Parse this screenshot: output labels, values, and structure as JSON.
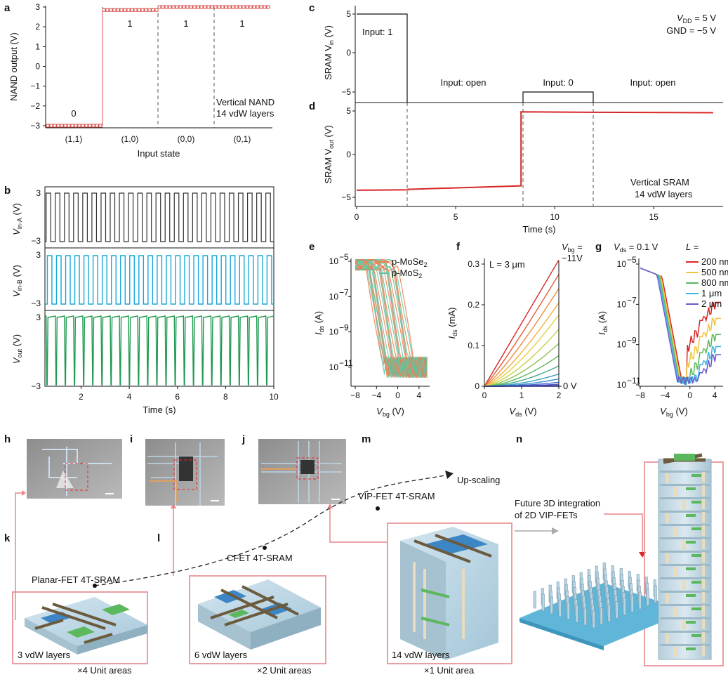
{
  "panels": {
    "a": "a",
    "b": "b",
    "c": "c",
    "d": "d",
    "e": "e",
    "f": "f",
    "g": "g",
    "h": "h",
    "i": "i",
    "j": "j",
    "k": "k",
    "l": "l",
    "m": "m",
    "n": "n"
  },
  "a": {
    "ylabel": "NAND output (V)",
    "xlabel": "Input state",
    "yticks": [
      "3",
      "2",
      "1",
      "0",
      "−1",
      "−2",
      "−3"
    ],
    "states": [
      "(1,1)",
      "(1,0)",
      "(0,0)",
      "(0,1)"
    ],
    "logic": [
      "0",
      "1",
      "1",
      "1"
    ],
    "note1": "Vertical NAND",
    "note2": "14 vdW layers",
    "chart_data": {
      "type": "scatter",
      "x": [
        "(1,1)",
        "(1,0)",
        "(0,0)",
        "(0,1)"
      ],
      "y": [
        -3.0,
        2.85,
        3.0,
        3.0
      ],
      "ylim": [
        -3.1,
        3.1
      ],
      "color": "#d9534f"
    }
  },
  "b": {
    "ylabel_a": "V",
    "ylabel_a_sub": "in-A",
    "ylabel_b": "V",
    "ylabel_b_sub": "in-B",
    "ylabel_o": "V",
    "ylabel_o_sub": "out",
    "unit": " (V)",
    "tick_hi": "3",
    "tick_lo": "−3",
    "xlabel": "Time (s)",
    "xticks": [
      "2",
      "4",
      "6",
      "8",
      "10"
    ],
    "chart_data": {
      "type": "line",
      "xlim": [
        0.5,
        10
      ],
      "period_s": 0.38,
      "levels": [
        -3,
        3
      ],
      "series_colors": [
        "#333333",
        "#1aa7d9",
        "#1f9a4f"
      ]
    }
  },
  "c": {
    "ylabel": "SRAM V",
    "ylabel_sub": "in",
    "unit": " (V)",
    "yticks": [
      "5",
      "0",
      "−5"
    ],
    "input1": "Input: 1",
    "open1": "Input: open",
    "input0": "Input: 0",
    "open2": "Input: open",
    "vdd": "V",
    "vdd_sub": "DD",
    "vdd_val": " = 5 V",
    "gnd": "GND = −5 V"
  },
  "d": {
    "ylabel": "SRAM V",
    "ylabel_sub": "out",
    "unit": " (V)",
    "yticks": [
      "5",
      "0",
      "−5"
    ],
    "xticks": [
      "0",
      "5",
      "10",
      "15"
    ],
    "xlabel": "Time (s)",
    "note1": "Vertical SRAM",
    "note2": "14 vdW layers",
    "chart_data": {
      "type": "line",
      "x": [
        0,
        2.6,
        2.6,
        8.3,
        8.3,
        11.8,
        18
      ],
      "y": [
        -4.1,
        -4.05,
        -4.0,
        -3.6,
        4.9,
        4.85,
        4.8
      ],
      "xlim": [
        -0.2,
        18
      ],
      "ylim": [
        -5.8,
        5.8
      ]
    }
  },
  "e": {
    "ylabel": "I",
    "ylabel_sub": "ds",
    "unit": " (A)",
    "xlabel": "V",
    "xlabel_sub": "bg",
    "xunit": " (V)",
    "yticks": [
      "10",
      "10",
      "10",
      "10"
    ],
    "yexp": [
      "−5",
      "−7",
      "−9",
      "−11"
    ],
    "xticks": [
      "−8",
      "−4",
      "0",
      "4"
    ],
    "leg1": "p-MoSe",
    "leg1_sub": "2",
    "leg2": "p-MoS",
    "leg2_sub": "2",
    "chart_data": {
      "type": "line",
      "x_range": [
        -8,
        6
      ],
      "y_range_log": [
        -12,
        -5
      ],
      "series": [
        {
          "name": "p-MoSe2",
          "color": "#ef7d4f"
        },
        {
          "name": "p-MoS2",
          "color": "#5ec8a6"
        }
      ]
    }
  },
  "f": {
    "ylabel": "I",
    "ylabel_sub": "ds",
    "unit": " (mA)",
    "xlabel": "V",
    "xlabel_sub": "ds",
    "xunit": " (V)",
    "yticks": [
      "0.3",
      "0.2",
      "0.1",
      "0"
    ],
    "xticks": [
      "0",
      "1",
      "2"
    ],
    "len_label": "L = 3 μm",
    "vbg_label": "V",
    "vbg_sub": "bg",
    "vbg_eq": " =",
    "vbg_val": "−11V",
    "vbg_end": "0 V",
    "chart_data": {
      "type": "line",
      "xlim": [
        0,
        2
      ],
      "ylim": [
        0,
        0.32
      ],
      "end_currents": [
        0.31,
        0.275,
        0.24,
        0.205,
        0.175,
        0.14,
        0.105,
        0.075,
        0.05,
        0.03,
        0.018,
        0.01,
        0.005,
        0.002,
        0.0
      ]
    }
  },
  "g": {
    "vds": "V",
    "vds_sub": "ds",
    "vds_val": " = 0.1 V",
    "L": "L =",
    "ylabel": "I",
    "ylabel_sub": "ds",
    "unit": " (A)",
    "xlabel": "V",
    "xlabel_sub": "bg",
    "xunit": " (V)",
    "yticks": [
      "10",
      "10",
      "10",
      "10"
    ],
    "yexp": [
      "−5",
      "−7",
      "−9",
      "−11"
    ],
    "xticks": [
      "−8",
      "−4",
      "0",
      "4"
    ],
    "legend": [
      {
        "label": "200 nm",
        "color": "#d62728"
      },
      {
        "label": "500 nm",
        "color": "#f2c53d"
      },
      {
        "label": "800 nm",
        "color": "#5cb85c"
      },
      {
        "label": "1 μm",
        "color": "#3bb3e0"
      },
      {
        "label": "2 μm",
        "color": "#6a5acd"
      }
    ],
    "chart_data": {
      "type": "line",
      "x_range": [
        -8,
        5
      ],
      "y_range_log": [
        -11,
        -5
      ]
    }
  },
  "bottom": {
    "planar": "Planar-FET 4T-SRAM",
    "cfet": "CFET 4T-SRAM",
    "vip": "VIP-FET 4T-SRAM",
    "upscale": "Up-scaling",
    "future1": "Future 3D integration",
    "future2": "of 2D VIP-FETs",
    "layers3": "3 vdW layers",
    "layers6": "6 vdW layers",
    "layers14": "14 vdW layers",
    "unit4": "×4 Unit areas",
    "unit2": "×2 Unit areas",
    "unit1": "×1 Unit area"
  },
  "colors": {
    "red": "#d9534f",
    "pink": "#e8878a"
  }
}
